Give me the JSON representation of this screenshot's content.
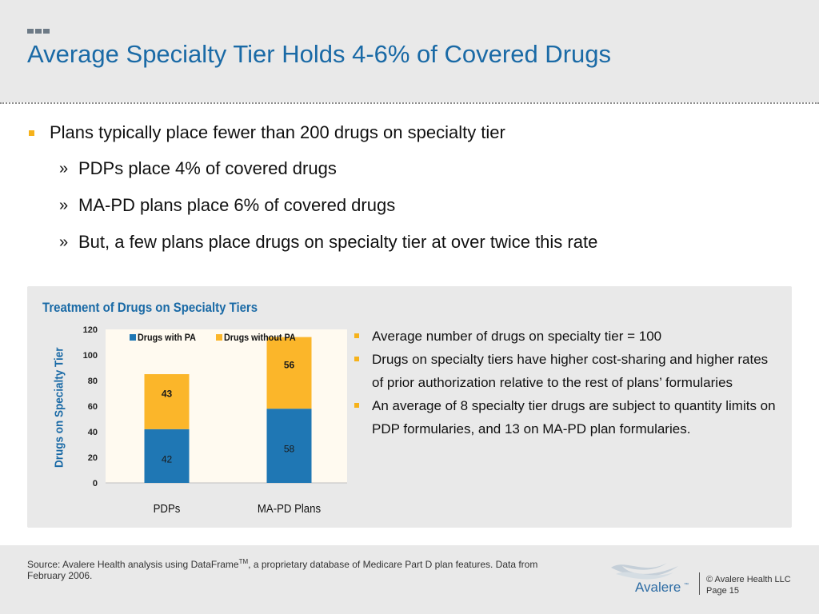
{
  "slide": {
    "title": "Average Specialty Tier Holds 4-6% of Covered Drugs",
    "bullets": {
      "main": "Plans typically place fewer than 200 drugs on specialty tier",
      "sub": [
        "PDPs place 4% of covered drugs",
        "MA-PD plans place 6% of covered drugs",
        "But, a few plans place drugs on specialty tier at over twice this rate"
      ],
      "sub_marker": "»"
    }
  },
  "chart_data": {
    "type": "bar",
    "stacked": true,
    "title": "Treatment of Drugs on Specialty Tiers",
    "ylabel": "Drugs on Specialty Tier",
    "xlabel": "",
    "categories": [
      "PDPs",
      "MA-PD Plans"
    ],
    "series": [
      {
        "name": "Drugs with PA",
        "values": [
          42,
          58
        ],
        "color": "#1f77b4"
      },
      {
        "name": "Drugs without PA",
        "values": [
          43,
          56
        ],
        "color": "#fbb62a"
      }
    ],
    "ylim": [
      0,
      120
    ],
    "yticks": [
      0,
      20,
      40,
      60,
      80,
      100,
      120
    ],
    "legend": "top",
    "grid": false
  },
  "notes": [
    "Average number of drugs on specialty tier = 100",
    "Drugs on specialty tiers have higher cost-sharing and higher rates of prior authorization relative to the rest of plans’ formularies",
    "An average of 8 specialty tier drugs are subject to quantity limits on PDP formularies, and 13 on MA-PD plan formularies."
  ],
  "footer": {
    "source_prefix": "Source:  Avalere Health analysis using DataFrame",
    "source_sup": "TM",
    "source_suffix": ", a proprietary database of Medicare Part D plan features. Data from February 2006.",
    "logo_text": "Avalere",
    "logo_tm": "™",
    "copyright": "© Avalere Health LLC",
    "page": "Page 15"
  },
  "colors": {
    "accent_blue": "#1a6aa6",
    "bullet_gold": "#f6b21b"
  }
}
